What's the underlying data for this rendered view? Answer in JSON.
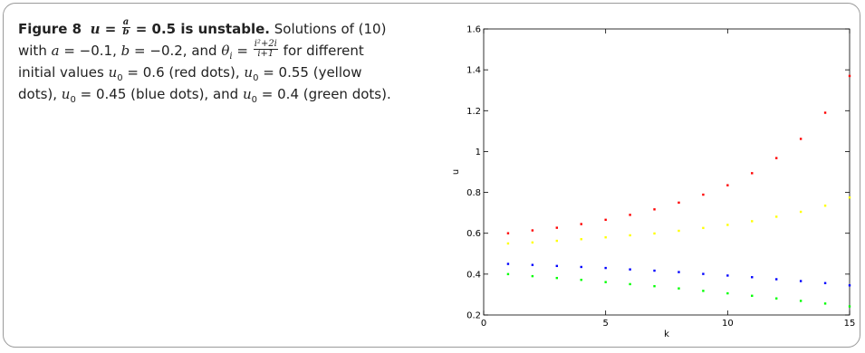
{
  "caption": {
    "figure_label": "Figure 8",
    "heading_lhs": "u",
    "heading_frac_num": "a",
    "heading_frac_den": "b",
    "heading_rhs": "= 0.5 is unstable.",
    "line1": "Solutions of (10)",
    "line2_a": "with",
    "a_sym": "a",
    "a_val": "= −0.1,",
    "b_sym": "b",
    "b_val": "= −0.2, and",
    "theta_sym": "θ",
    "theta_sub": "i",
    "theta_eq": "=",
    "theta_num": "i²+2i",
    "theta_den": "i+1",
    "line2_b": "for different",
    "line3_a": "initial values",
    "u_sym": "u",
    "u_sub": "0",
    "red_val": "= 0.6 (red dots),",
    "yellow_val": "= 0.55 (yellow",
    "line4_a": "dots),",
    "blue_val": "= 0.45 (blue dots), and",
    "green_val": "= 0.4 (green dots)."
  },
  "chart_data": {
    "type": "scatter",
    "xlabel": "k",
    "ylabel": "u",
    "xlim": [
      0,
      15
    ],
    "ylim": [
      0.2,
      1.6
    ],
    "xticks": [
      0,
      5,
      10,
      15
    ],
    "yticks": [
      0.2,
      0.4,
      0.6,
      0.8,
      1,
      1.2,
      1.4,
      1.6
    ],
    "xtick_labels": [
      "0",
      "5",
      "10",
      "15"
    ],
    "ytick_labels": [
      "0.2",
      "0.4",
      "0.6",
      "0.8",
      "1",
      "1.2",
      "1.4",
      "1.6"
    ],
    "grid": false,
    "x": [
      1,
      2,
      3,
      4,
      5,
      6,
      7,
      8,
      9,
      10,
      11,
      12,
      13,
      14,
      15
    ],
    "series": [
      {
        "color": "#ff0000",
        "values": [
          0.6,
          0.614,
          0.627,
          0.645,
          0.666,
          0.69,
          0.717,
          0.75,
          0.789,
          0.835,
          0.894,
          0.968,
          1.062,
          1.19,
          1.37
        ]
      },
      {
        "color": "#ffff00",
        "values": [
          0.55,
          0.555,
          0.563,
          0.571,
          0.58,
          0.59,
          0.599,
          0.612,
          0.626,
          0.641,
          0.659,
          0.681,
          0.705,
          0.735,
          0.775
        ]
      },
      {
        "color": "#0000ff",
        "values": [
          0.45,
          0.445,
          0.44,
          0.435,
          0.43,
          0.423,
          0.417,
          0.41,
          0.401,
          0.393,
          0.385,
          0.375,
          0.366,
          0.356,
          0.345
        ]
      },
      {
        "color": "#00ff00",
        "values": [
          0.4,
          0.39,
          0.381,
          0.372,
          0.361,
          0.351,
          0.341,
          0.33,
          0.318,
          0.306,
          0.294,
          0.281,
          0.269,
          0.256,
          0.242
        ]
      }
    ]
  }
}
